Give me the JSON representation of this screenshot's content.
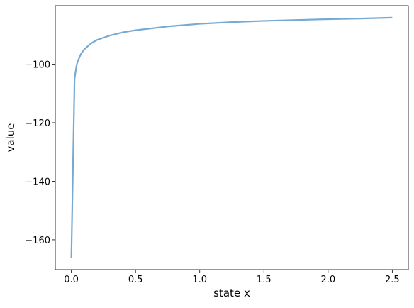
{
  "chart_data": {
    "type": "line",
    "xlabel": "state x",
    "ylabel": "value",
    "xlim": [
      -0.125,
      2.625
    ],
    "ylim": [
      -170.2,
      -80.0
    ],
    "xticks": [
      {
        "value": 0,
        "label": "0.0"
      },
      {
        "value": 0.5,
        "label": "0.5"
      },
      {
        "value": 1,
        "label": "1.0"
      },
      {
        "value": 1.5,
        "label": "1.5"
      },
      {
        "value": 2,
        "label": "2.0"
      },
      {
        "value": 2.5,
        "label": "2.5"
      }
    ],
    "yticks": [
      {
        "value": -160,
        "label": "−160"
      },
      {
        "value": -140,
        "label": "−140"
      },
      {
        "value": -120,
        "label": "−120"
      },
      {
        "value": -100,
        "label": "−100"
      }
    ],
    "grid": false,
    "series": [
      {
        "color": "#77aad3",
        "x": [
          0.0,
          0.025,
          0.04,
          0.05,
          0.075,
          0.1,
          0.15,
          0.2,
          0.3,
          0.4,
          0.5,
          0.75,
          1.0,
          1.25,
          1.5,
          1.75,
          2.0,
          2.25,
          2.5
        ],
        "values": [
          -166.3,
          -105,
          -100.5,
          -99,
          -96.5,
          -95,
          -93,
          -91.7,
          -90.2,
          -89.1,
          -88.4,
          -87.1,
          -86.2,
          -85.6,
          -85.2,
          -84.9,
          -84.6,
          -84.4,
          -84.1
        ]
      }
    ]
  }
}
